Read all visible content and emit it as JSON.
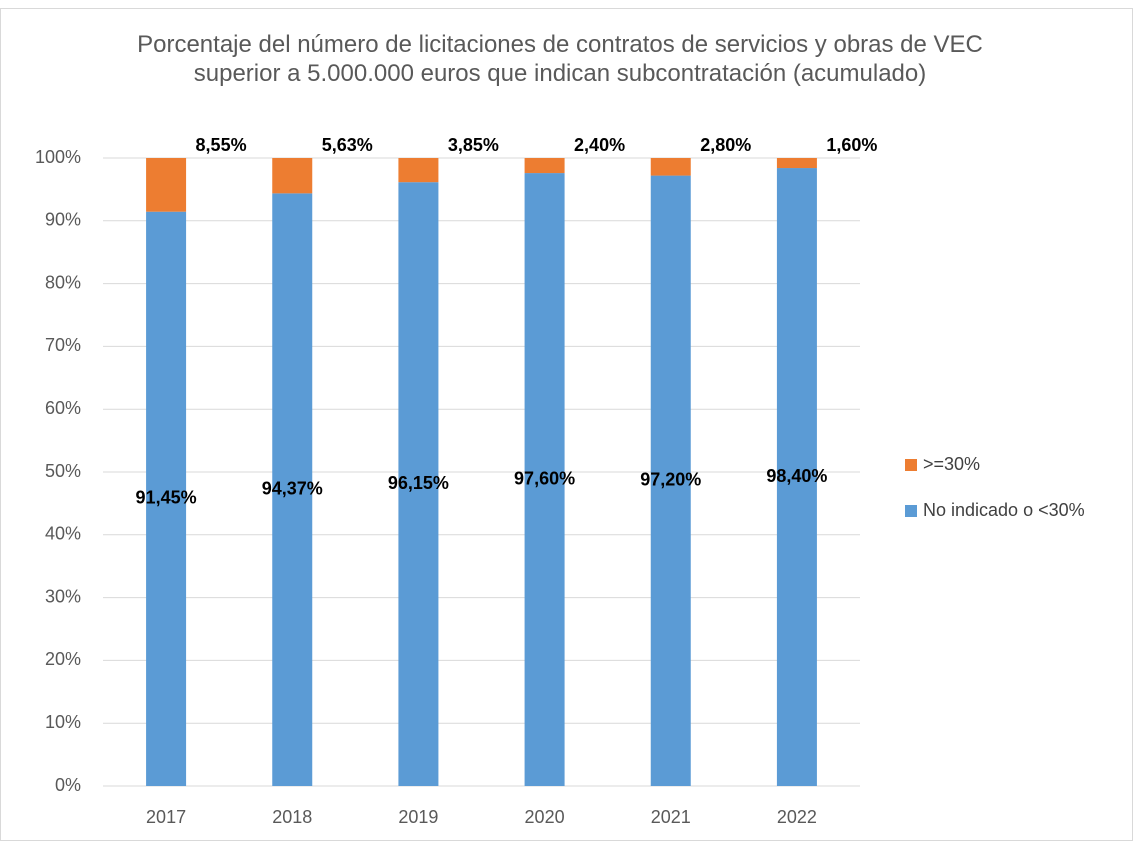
{
  "chart_data": {
    "type": "stacked_bar",
    "title": "Porcentaje del número de licitaciones de contratos de servicios y obras de VEC superior a 5.000.000 euros que indican subcontratación (acumulado)",
    "categories": [
      "2017",
      "2018",
      "2019",
      "2020",
      "2021",
      "2022"
    ],
    "series": [
      {
        "name": "No indicado o <30%",
        "color": "#5b9bd5",
        "values": [
          91.45,
          94.37,
          96.15,
          97.6,
          97.2,
          98.4
        ],
        "value_labels": [
          "91,45%",
          "94,37%",
          "96,15%",
          "97,60%",
          "97,20%",
          "98,40%"
        ]
      },
      {
        "name": ">=30%",
        "color": "#ed7d31",
        "values": [
          8.55,
          5.63,
          3.85,
          2.4,
          2.8,
          1.6
        ],
        "value_labels": [
          "8,55%",
          "5,63%",
          "3,85%",
          "2,40%",
          "2,80%",
          "1,60%"
        ]
      }
    ],
    "ylim": [
      0,
      100
    ],
    "yticks": [
      {
        "value": 0,
        "label": "0%"
      },
      {
        "value": 10,
        "label": "10%"
      },
      {
        "value": 20,
        "label": "20%"
      },
      {
        "value": 30,
        "label": "30%"
      },
      {
        "value": 40,
        "label": "40%"
      },
      {
        "value": 50,
        "label": "50%"
      },
      {
        "value": 60,
        "label": "60%"
      },
      {
        "value": 70,
        "label": "70%"
      },
      {
        "value": 80,
        "label": "80%"
      },
      {
        "value": 90,
        "label": "90%"
      },
      {
        "value": 100,
        "label": "100%"
      }
    ],
    "grid": true,
    "legend": "right"
  }
}
